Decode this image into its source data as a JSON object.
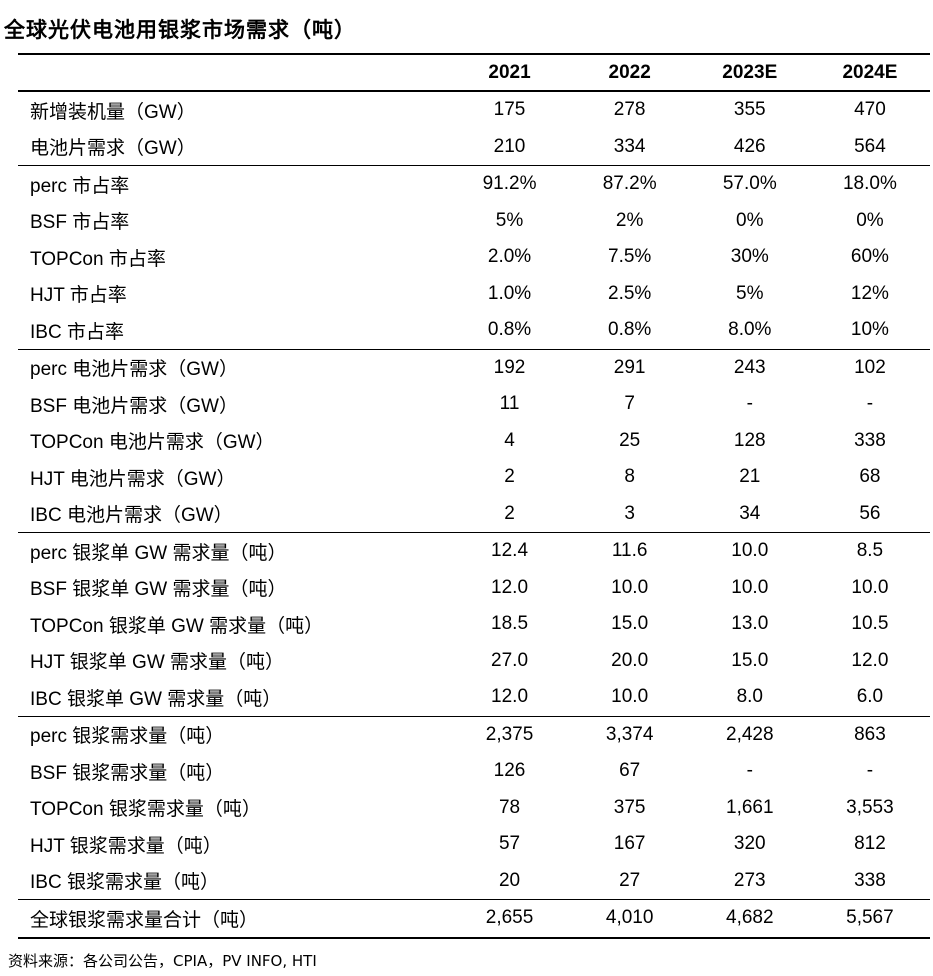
{
  "title": "全球光伏电池用银浆市场需求（吨）",
  "table": {
    "headers": [
      "",
      "2021",
      "2022",
      "2023E",
      "2024E"
    ],
    "groups": [
      [
        [
          "新增装机量（GW）",
          "175",
          "278",
          "355",
          "470"
        ],
        [
          "电池片需求（GW）",
          "210",
          "334",
          "426",
          "564"
        ]
      ],
      [
        [
          "perc 市占率",
          "91.2%",
          "87.2%",
          "57.0%",
          "18.0%"
        ],
        [
          "BSF 市占率",
          "5%",
          "2%",
          "0%",
          "0%"
        ],
        [
          "TOPCon 市占率",
          "2.0%",
          "7.5%",
          "30%",
          "60%"
        ],
        [
          "HJT 市占率",
          "1.0%",
          "2.5%",
          "5%",
          "12%"
        ],
        [
          "IBC 市占率",
          "0.8%",
          "0.8%",
          "8.0%",
          "10%"
        ]
      ],
      [
        [
          "perc 电池片需求（GW）",
          "192",
          "291",
          "243",
          "102"
        ],
        [
          "BSF 电池片需求（GW）",
          "11",
          "7",
          "-",
          "-"
        ],
        [
          "TOPCon 电池片需求（GW）",
          "4",
          "25",
          "128",
          "338"
        ],
        [
          "HJT 电池片需求（GW）",
          "2",
          "8",
          "21",
          "68"
        ],
        [
          "IBC 电池片需求（GW）",
          "2",
          "3",
          "34",
          "56"
        ]
      ],
      [
        [
          "perc 银浆单 GW 需求量（吨）",
          "12.4",
          "11.6",
          "10.0",
          "8.5"
        ],
        [
          "BSF 银浆单 GW 需求量（吨）",
          "12.0",
          "10.0",
          "10.0",
          "10.0"
        ],
        [
          "TOPCon 银浆单 GW 需求量（吨）",
          "18.5",
          "15.0",
          "13.0",
          "10.5"
        ],
        [
          "HJT 银浆单 GW 需求量（吨）",
          "27.0",
          "20.0",
          "15.0",
          "12.0"
        ],
        [
          "IBC 银浆单 GW 需求量（吨）",
          "12.0",
          "10.0",
          "8.0",
          "6.0"
        ]
      ],
      [
        [
          "perc 银浆需求量（吨）",
          "2,375",
          "3,374",
          "2,428",
          "863"
        ],
        [
          "BSF 银浆需求量（吨）",
          "126",
          "67",
          "-",
          "-"
        ],
        [
          "TOPCon 银浆需求量（吨）",
          "78",
          "375",
          "1,661",
          "3,553"
        ],
        [
          "HJT 银浆需求量（吨）",
          "57",
          "167",
          "320",
          "812"
        ],
        [
          "IBC 银浆需求量（吨）",
          "20",
          "27",
          "273",
          "338"
        ]
      ],
      [
        [
          "全球银浆需求量合计（吨）",
          "2,655",
          "4,010",
          "4,682",
          "5,567"
        ]
      ]
    ]
  },
  "source": "资料来源：各公司公告，CPIA，PV INFO, HTI"
}
